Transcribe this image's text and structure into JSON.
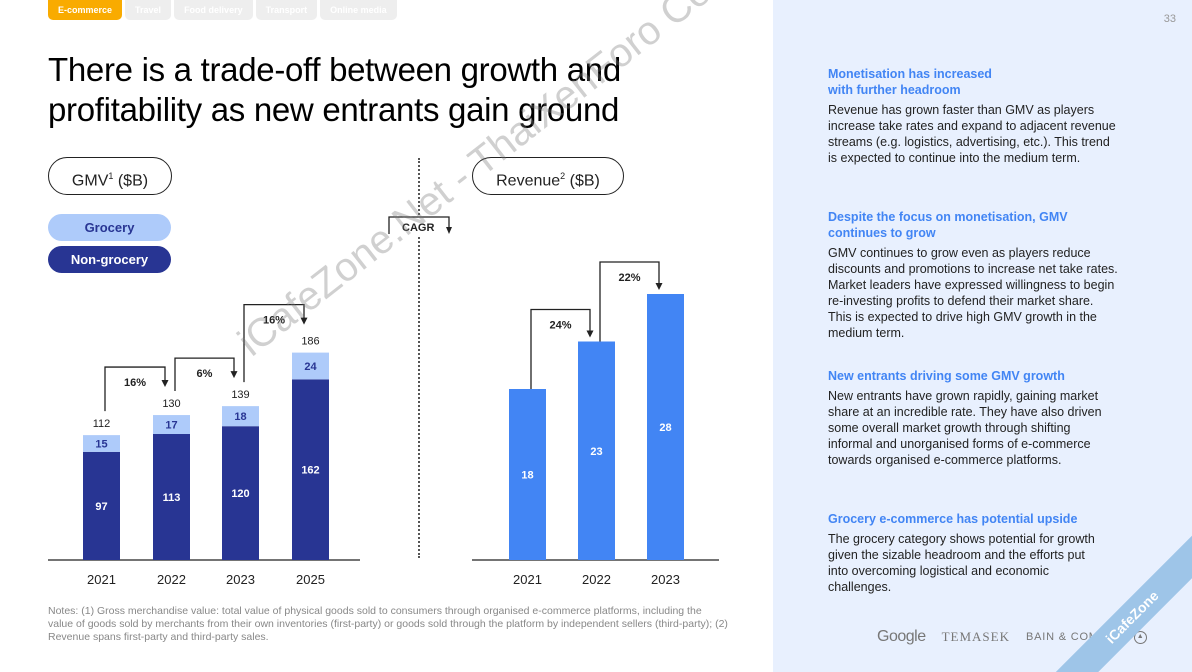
{
  "tabs": [
    {
      "label": "E-commerce",
      "active": true
    },
    {
      "label": "Travel",
      "active": false
    },
    {
      "label": "Food delivery",
      "active": false
    },
    {
      "label": "Transport",
      "active": false
    },
    {
      "label": "Online media",
      "active": false
    }
  ],
  "page_number": "33",
  "title": "There is a trade-off between growth and profitability as new entrants gain ground",
  "gmv_heading": {
    "text": "GMV",
    "sup": "1",
    "unit": " ($B)"
  },
  "revenue_heading": {
    "text": "Revenue",
    "sup": "2",
    "unit": " ($B)"
  },
  "legend": {
    "grocery": "Grocery",
    "non_grocery": "Non-grocery"
  },
  "cagr_label": "CAGR",
  "colors": {
    "grocery": "#aecbfa",
    "non_grocery": "#283593",
    "revenue": "#4285f4",
    "active_tab": "#f9ab00",
    "insight_title": "#4285f4",
    "panel_bg": "#e8f0fe"
  },
  "chart_data": [
    {
      "type": "bar",
      "stacked": true,
      "title": "GMV ($B)",
      "categories": [
        "2021",
        "2022",
        "2023",
        "2025"
      ],
      "series": [
        {
          "name": "Non-grocery",
          "values": [
            97,
            113,
            120,
            162
          ]
        },
        {
          "name": "Grocery",
          "values": [
            15,
            17,
            18,
            24
          ]
        }
      ],
      "totals": [
        112,
        130,
        139,
        186
      ],
      "cagr": [
        {
          "from": "2021",
          "to": "2022",
          "label": "16%"
        },
        {
          "from": "2022",
          "to": "2023",
          "label": "6%"
        },
        {
          "from": "2023",
          "to": "2025",
          "label": "16%"
        }
      ],
      "ylim": [
        0,
        200
      ]
    },
    {
      "type": "bar",
      "title": "Revenue ($B)",
      "categories": [
        "2021",
        "2022",
        "2023"
      ],
      "values": [
        18,
        23,
        28
      ],
      "cagr": [
        {
          "from": "2021",
          "to": "2022",
          "label": "24%"
        },
        {
          "from": "2022",
          "to": "2023",
          "label": "22%"
        }
      ],
      "ylim": [
        0,
        30
      ]
    }
  ],
  "notes": "Notes: (1) Gross merchandise value: total value of physical goods sold to consumers through organised e-commerce platforms, including the value of goods sold by merchants from their own inventories (first-party) or goods sold through the platform by independent sellers (third-party); (2) Revenue spans first-party and third-party sales.",
  "insights": [
    {
      "title": "Monetisation has increased with further headroom",
      "body": "Revenue has grown faster than GMV as players increase take rates and expand to adjacent revenue streams (e.g. logistics, advertising, etc.). This trend is expected to continue into the medium term."
    },
    {
      "title": "Despite the focus on monetisation, GMV continues to grow",
      "body": "GMV continues to grow even as players reduce discounts and promotions to increase net take rates. Market leaders have expressed willingness to begin re-investing profits to defend their market share. This is expected to drive high GMV growth in the medium term."
    },
    {
      "title": "New entrants driving some GMV growth",
      "body": "New entrants have grown rapidly, gaining market share at an incredible rate. They have also driven some overall market growth through shifting informal and unorganised forms of e-commerce towards organised e-commerce platforms."
    },
    {
      "title": "Grocery e-commerce has potential upside",
      "body": "The grocery category shows potential for growth given the sizable headroom and the efforts put into overcoming logistical and economic challenges."
    }
  ],
  "logos": {
    "google": "Google",
    "temasek": "TEMASEK",
    "bain": "BAIN & COMPANY"
  },
  "watermarks": {
    "main": "iCafeZone.Net - ThaiXenForo Community",
    "corner": "iCafeZone"
  }
}
